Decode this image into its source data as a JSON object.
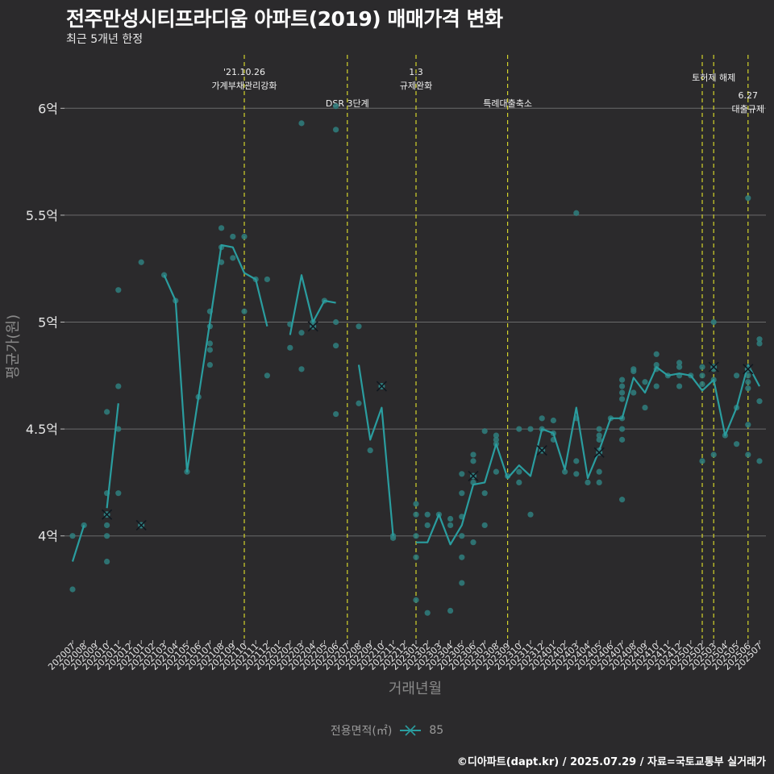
{
  "header": {
    "title": "전주만성시티프라디움 아파트(2019) 매매가격 변화",
    "subtitle": "최근 5개년 한정"
  },
  "caption": "©디아파트(dapt.kr) / 2025.07.29 / 자료=국토교통부 실거래가",
  "legend": {
    "title": "전용면적(㎡)",
    "series_label": "85"
  },
  "colors": {
    "background": "#2b2a2c",
    "grid": "#6b6b6b",
    "series": "#2a9d9f",
    "vline": "#d4d42b",
    "point": "#2f7f7f"
  },
  "chart_data": {
    "type": "line",
    "title": "전주만성시티프라디움 아파트(2019) 매매가격 변화",
    "xlabel": "거래년월",
    "ylabel": "평균가(원)",
    "ylim": [
      3.52,
      6.25
    ],
    "yticks": [
      4,
      4.5,
      5,
      5.5,
      6
    ],
    "ytick_labels": [
      "4억",
      "4.5억",
      "5억",
      "5.5억",
      "6억"
    ],
    "categories": [
      "202007",
      "202008",
      "202009",
      "202010",
      "202011",
      "202012",
      "202101",
      "202102",
      "202103",
      "202104",
      "202105",
      "202106",
      "202107",
      "202108",
      "202109",
      "202110",
      "202111",
      "202112",
      "202201",
      "202202",
      "202203",
      "202204",
      "202205",
      "202206",
      "202207",
      "202208",
      "202209",
      "202210",
      "202211",
      "202212",
      "202301",
      "202302",
      "202303",
      "202304",
      "202305",
      "202306",
      "202307",
      "202308",
      "202309",
      "202310",
      "202311",
      "202312",
      "202401",
      "202402",
      "202403",
      "202404",
      "202405",
      "202406",
      "202407",
      "202408",
      "202409",
      "202410",
      "202411",
      "202412",
      "202501",
      "202502",
      "202503",
      "202504",
      "202505",
      "202506",
      "202507"
    ],
    "series": [
      {
        "name": "85",
        "values": [
          3.88,
          4.05,
          null,
          4.13,
          4.62,
          null,
          null,
          null,
          5.22,
          5.1,
          4.3,
          4.65,
          5.0,
          5.36,
          5.35,
          5.23,
          5.2,
          4.98,
          null,
          4.94,
          5.22,
          5.0,
          5.1,
          5.09,
          null,
          4.8,
          4.45,
          4.6,
          4.0,
          null,
          3.97,
          3.97,
          4.1,
          3.96,
          4.05,
          4.24,
          4.25,
          4.43,
          4.27,
          4.33,
          4.28,
          4.5,
          4.48,
          4.31,
          4.6,
          4.27,
          4.4,
          4.55,
          4.55,
          4.74,
          4.67,
          4.79,
          4.75,
          4.76,
          4.75,
          4.68,
          4.73,
          4.47,
          4.6,
          4.8,
          4.7
        ]
      }
    ],
    "points": [
      [
        "202007",
        4.0
      ],
      [
        "202007",
        3.75
      ],
      [
        "202008",
        4.05
      ],
      [
        "202010",
        4.58
      ],
      [
        "202010",
        4.2
      ],
      [
        "202010",
        4.1
      ],
      [
        "202010",
        4.05
      ],
      [
        "202010",
        4.0
      ],
      [
        "202010",
        3.88
      ],
      [
        "202011",
        5.15
      ],
      [
        "202011",
        4.7
      ],
      [
        "202011",
        4.5
      ],
      [
        "202011",
        4.2
      ],
      [
        "202101",
        5.28
      ],
      [
        "202101",
        4.05
      ],
      [
        "202103",
        5.22
      ],
      [
        "202104",
        5.1
      ],
      [
        "202105",
        4.3
      ],
      [
        "202106",
        4.65
      ],
      [
        "202107",
        5.05
      ],
      [
        "202107",
        4.98
      ],
      [
        "202107",
        4.9
      ],
      [
        "202107",
        4.87
      ],
      [
        "202107",
        4.8
      ],
      [
        "202108",
        5.44
      ],
      [
        "202108",
        5.35
      ],
      [
        "202108",
        5.28
      ],
      [
        "202109",
        5.4
      ],
      [
        "202109",
        5.3
      ],
      [
        "202110",
        5.4
      ],
      [
        "202110",
        5.05
      ],
      [
        "202111",
        5.2
      ],
      [
        "202112",
        5.2
      ],
      [
        "202112",
        4.75
      ],
      [
        "202202",
        4.99
      ],
      [
        "202202",
        4.88
      ],
      [
        "202203",
        5.93
      ],
      [
        "202203",
        4.95
      ],
      [
        "202203",
        4.78
      ],
      [
        "202204",
        5.0
      ],
      [
        "202204",
        4.98
      ],
      [
        "202205",
        5.1
      ],
      [
        "202206",
        6.01
      ],
      [
        "202206",
        5.9
      ],
      [
        "202206",
        5.0
      ],
      [
        "202206",
        4.89
      ],
      [
        "202206",
        4.57
      ],
      [
        "202208",
        4.98
      ],
      [
        "202208",
        4.62
      ],
      [
        "202209",
        4.4
      ],
      [
        "202210",
        4.7
      ],
      [
        "202211",
        4.0
      ],
      [
        "202211",
        3.99
      ],
      [
        "202301",
        4.15
      ],
      [
        "202301",
        4.1
      ],
      [
        "202301",
        4.0
      ],
      [
        "202301",
        3.9
      ],
      [
        "202301",
        3.7
      ],
      [
        "202302",
        4.1
      ],
      [
        "202302",
        4.05
      ],
      [
        "202302",
        3.64
      ],
      [
        "202303",
        4.1
      ],
      [
        "202304",
        4.08
      ],
      [
        "202304",
        4.05
      ],
      [
        "202304",
        3.65
      ],
      [
        "202305",
        4.29
      ],
      [
        "202305",
        4.2
      ],
      [
        "202305",
        4.09
      ],
      [
        "202305",
        4.0
      ],
      [
        "202305",
        3.9
      ],
      [
        "202305",
        3.78
      ],
      [
        "202306",
        4.38
      ],
      [
        "202306",
        4.35
      ],
      [
        "202306",
        4.28
      ],
      [
        "202306",
        4.25
      ],
      [
        "202306",
        3.97
      ],
      [
        "202307",
        4.49
      ],
      [
        "202307",
        4.2
      ],
      [
        "202307",
        4.05
      ],
      [
        "202308",
        4.47
      ],
      [
        "202308",
        4.45
      ],
      [
        "202308",
        4.43
      ],
      [
        "202308",
        4.3
      ],
      [
        "202309",
        4.28
      ],
      [
        "202310",
        4.5
      ],
      [
        "202310",
        4.3
      ],
      [
        "202310",
        4.25
      ],
      [
        "202311",
        4.5
      ],
      [
        "202311",
        4.1
      ],
      [
        "202312",
        4.55
      ],
      [
        "202312",
        4.5
      ],
      [
        "202312",
        4.4
      ],
      [
        "202401",
        4.54
      ],
      [
        "202401",
        4.48
      ],
      [
        "202401",
        4.45
      ],
      [
        "202402",
        4.3
      ],
      [
        "202403",
        5.51
      ],
      [
        "202403",
        4.55
      ],
      [
        "202403",
        4.35
      ],
      [
        "202403",
        4.29
      ],
      [
        "202404",
        4.25
      ],
      [
        "202405",
        4.5
      ],
      [
        "202405",
        4.47
      ],
      [
        "202405",
        4.45
      ],
      [
        "202405",
        4.4
      ],
      [
        "202405",
        4.3
      ],
      [
        "202405",
        4.25
      ],
      [
        "202406",
        4.55
      ],
      [
        "202407",
        4.73
      ],
      [
        "202407",
        4.7
      ],
      [
        "202407",
        4.67
      ],
      [
        "202407",
        4.64
      ],
      [
        "202407",
        4.55
      ],
      [
        "202407",
        4.5
      ],
      [
        "202407",
        4.45
      ],
      [
        "202407",
        4.17
      ],
      [
        "202408",
        4.78
      ],
      [
        "202408",
        4.77
      ],
      [
        "202408",
        4.67
      ],
      [
        "202409",
        4.72
      ],
      [
        "202409",
        4.6
      ],
      [
        "202410",
        4.85
      ],
      [
        "202410",
        4.8
      ],
      [
        "202410",
        4.78
      ],
      [
        "202410",
        4.7
      ],
      [
        "202411",
        4.75
      ],
      [
        "202412",
        4.81
      ],
      [
        "202412",
        4.79
      ],
      [
        "202412",
        4.75
      ],
      [
        "202412",
        4.7
      ],
      [
        "202501",
        4.75
      ],
      [
        "202502",
        4.79
      ],
      [
        "202502",
        4.75
      ],
      [
        "202502",
        4.71
      ],
      [
        "202502",
        4.35
      ],
      [
        "202503",
        5.0
      ],
      [
        "202503",
        4.78
      ],
      [
        "202503",
        4.73
      ],
      [
        "202503",
        4.38
      ],
      [
        "202504",
        4.47
      ],
      [
        "202505",
        4.75
      ],
      [
        "202505",
        4.6
      ],
      [
        "202505",
        4.43
      ],
      [
        "202506",
        5.58
      ],
      [
        "202506",
        4.78
      ],
      [
        "202506",
        4.75
      ],
      [
        "202506",
        4.72
      ],
      [
        "202506",
        4.69
      ],
      [
        "202506",
        4.52
      ],
      [
        "202506",
        4.38
      ],
      [
        "202507",
        4.92
      ],
      [
        "202507",
        4.9
      ],
      [
        "202507",
        4.63
      ],
      [
        "202507",
        4.35
      ]
    ],
    "x_markers": [
      [
        "202010",
        4.1
      ],
      [
        "202101",
        4.05
      ],
      [
        "202204",
        4.98
      ],
      [
        "202210",
        4.7
      ],
      [
        "202306",
        4.28
      ],
      [
        "202312",
        4.4
      ],
      [
        "202405",
        4.39
      ],
      [
        "202503",
        4.79
      ],
      [
        "202506",
        4.78
      ]
    ],
    "annotations": [
      {
        "x": "202110",
        "lines": [
          "'21.10.26",
          "가계부채관리강화"
        ],
        "level": 0
      },
      {
        "x": "202207",
        "lines": [
          "DSR 3단계"
        ],
        "level": 2
      },
      {
        "x": "202301",
        "lines": [
          "1.3",
          "규제완화"
        ],
        "level": 0
      },
      {
        "x": "202309",
        "lines": [
          "특례대출축소"
        ],
        "level": 2
      },
      {
        "x": "202502",
        "lines": [],
        "level": 0
      },
      {
        "x": "202503",
        "lines": [
          "토허제 해제"
        ],
        "level": 1
      },
      {
        "x": "202506",
        "lines": [
          "6.27",
          "대출규제"
        ],
        "level": 3
      }
    ]
  }
}
